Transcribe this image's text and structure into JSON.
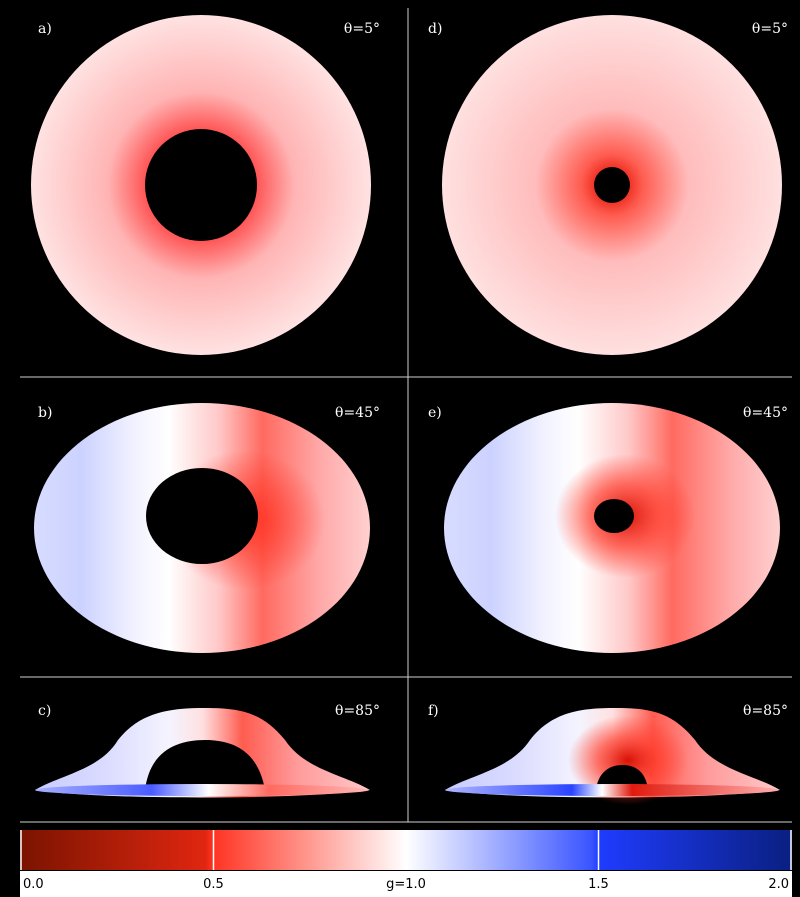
{
  "panels": [
    {
      "id": "a",
      "label": "a)",
      "angle": "θ=5°"
    },
    {
      "id": "b",
      "label": "b)",
      "angle": "θ=45°"
    },
    {
      "id": "c",
      "label": "c)",
      "angle": "θ=85°"
    },
    {
      "id": "d",
      "label": "d)",
      "angle": "θ=5°"
    },
    {
      "id": "e",
      "label": "e)",
      "angle": "θ=45°"
    },
    {
      "id": "f",
      "label": "f)",
      "angle": "θ=85°"
    }
  ],
  "colorbar": {
    "range": [
      0.0,
      2.0
    ],
    "ticks": [
      {
        "value": 0.0,
        "label": "0.0"
      },
      {
        "value": 0.5,
        "label": "0.5"
      },
      {
        "value": 1.0,
        "label": "g=1.0"
      },
      {
        "value": 1.5,
        "label": "1.5"
      },
      {
        "value": 2.0,
        "label": "2.0"
      }
    ],
    "colors": {
      "low": "#7a1400",
      "red": "#ff3322",
      "mid": "#ffffff",
      "blue": "#1f3cff",
      "high": "#0a1f80"
    }
  }
}
